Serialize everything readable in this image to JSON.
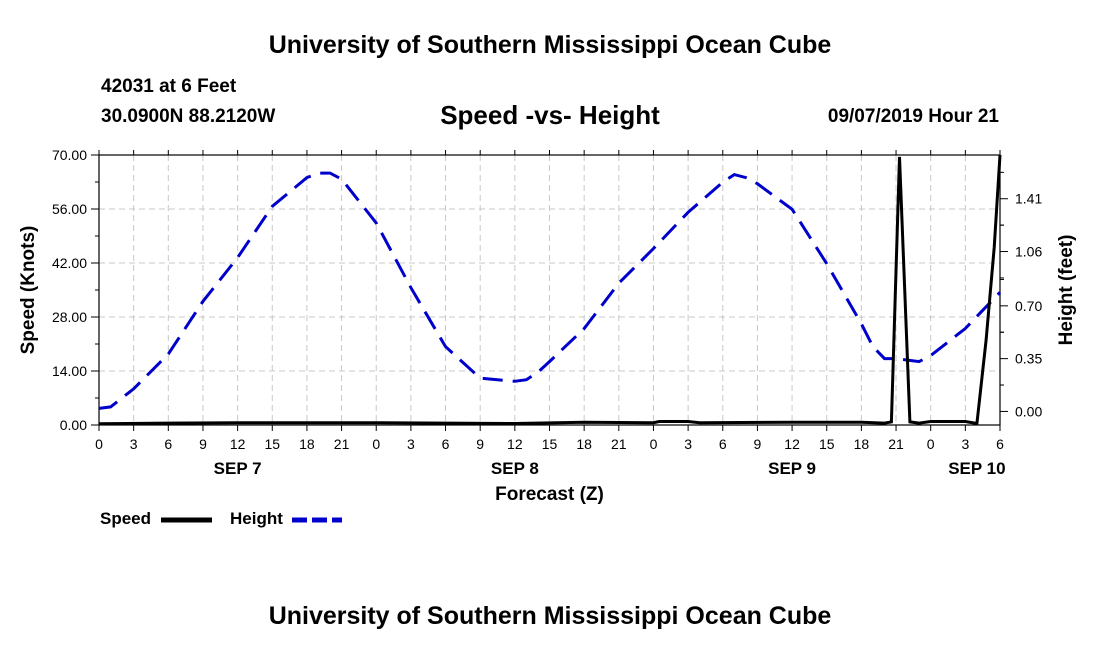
{
  "header": {
    "title": "University of Southern Mississippi Ocean Cube",
    "station": "42031 at 6 Feet",
    "location": "30.0900N 88.2120W",
    "subtitle": "Speed -vs- Height",
    "timestamp": "09/07/2019 Hour 21"
  },
  "footer": {
    "title": "University of Southern Mississippi Ocean Cube"
  },
  "legend": {
    "speed_label": "Speed",
    "height_label": "Height"
  },
  "colors": {
    "speed": "#000000",
    "height": "#0000cc",
    "grid": "#c8c8c8"
  },
  "chart_data": {
    "type": "line",
    "title": "Speed -vs- Height",
    "xlabel": "Forecast (Z)",
    "ylabel_left": "Speed (Knots)",
    "ylabel_right": "Height (feet)",
    "xlim": [
      0,
      78
    ],
    "ylim_left": [
      0,
      70
    ],
    "ylim_right": [
      -0.09,
      1.7
    ],
    "x_ticks": [
      0,
      3,
      6,
      9,
      12,
      15,
      18,
      21,
      24,
      27,
      30,
      33,
      36,
      39,
      42,
      45,
      48,
      51,
      54,
      57,
      60,
      63,
      66,
      69,
      72,
      75,
      78
    ],
    "x_tick_labels": [
      "0",
      "3",
      "6",
      "9",
      "12",
      "15",
      "18",
      "21",
      "0",
      "3",
      "6",
      "9",
      "12",
      "15",
      "18",
      "21",
      "0",
      "3",
      "6",
      "9",
      "12",
      "15",
      "18",
      "21",
      "0",
      "3",
      "6"
    ],
    "left_ticks": [
      0,
      14,
      28,
      42,
      56,
      70
    ],
    "left_tick_labels": [
      "0.00",
      "14.00",
      "28.00",
      "42.00",
      "56.00",
      "70.00"
    ],
    "right_ticks": [
      0,
      0.35,
      0.7,
      1.06,
      1.41
    ],
    "right_tick_labels": [
      "0.00",
      "0.35",
      "0.70",
      "1.06",
      "1.41"
    ],
    "day_labels": [
      {
        "x": 12,
        "label": "SEP 7"
      },
      {
        "x": 36,
        "label": "SEP 8"
      },
      {
        "x": 60,
        "label": "SEP 9"
      },
      {
        "x": 76,
        "label": "SEP 10"
      }
    ],
    "grid": true,
    "series": [
      {
        "name": "Speed",
        "axis": "left",
        "style": "solid",
        "x": [
          0,
          6,
          12,
          18,
          24,
          30,
          36,
          42,
          48,
          48.5,
          51,
          52,
          60,
          66,
          68,
          68.6,
          69.3,
          70.2,
          71,
          72,
          75,
          76,
          76.8,
          77.5,
          78
        ],
        "y": [
          0.3,
          0.5,
          0.6,
          0.6,
          0.6,
          0.5,
          0.4,
          0.7,
          0.6,
          0.9,
          0.9,
          0.6,
          0.7,
          0.7,
          0.5,
          0.8,
          69.5,
          0.8,
          0.5,
          0.9,
          0.9,
          0.4,
          22,
          46,
          70
        ]
      },
      {
        "name": "Height",
        "axis": "right",
        "style": "dashed",
        "x": [
          0,
          1,
          3,
          6,
          9,
          12,
          15,
          18,
          19,
          20,
          21,
          24,
          27,
          30,
          33,
          36,
          37,
          38,
          39,
          42,
          45,
          48,
          51,
          54,
          55,
          56,
          57,
          60,
          63,
          66,
          67,
          68,
          69,
          70,
          71,
          72,
          75,
          78
        ],
        "y": [
          0.02,
          0.03,
          0.15,
          0.38,
          0.73,
          1.02,
          1.36,
          1.55,
          1.58,
          1.58,
          1.54,
          1.25,
          0.82,
          0.43,
          0.22,
          0.2,
          0.21,
          0.26,
          0.33,
          0.55,
          0.85,
          1.08,
          1.32,
          1.52,
          1.57,
          1.55,
          1.51,
          1.34,
          0.98,
          0.58,
          0.43,
          0.35,
          0.35,
          0.34,
          0.33,
          0.37,
          0.55,
          0.79
        ]
      }
    ]
  }
}
